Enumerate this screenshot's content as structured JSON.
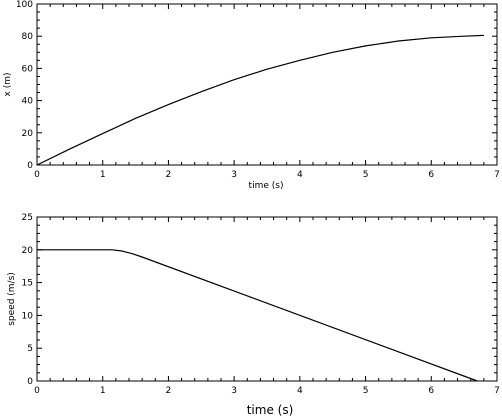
{
  "chart_data": [
    {
      "type": "line",
      "title": "",
      "xlabel": "time   (s)",
      "ylabel": "x   (m)",
      "xlim": [
        0,
        7
      ],
      "ylim": [
        0,
        100
      ],
      "x_ticks": [
        0,
        1,
        2,
        3,
        4,
        5,
        6,
        7
      ],
      "y_ticks": [
        0,
        20,
        40,
        60,
        80,
        100
      ],
      "grid": false,
      "series": [
        {
          "x": [
            0,
            0.5,
            1,
            1.5,
            2,
            2.5,
            3,
            3.5,
            4,
            4.5,
            5,
            5.5,
            6,
            6.5,
            6.8
          ],
          "values": [
            0,
            10,
            19.5,
            29,
            37.5,
            45.5,
            53,
            59.5,
            65,
            70,
            74,
            77,
            79,
            80,
            80.5
          ]
        }
      ]
    },
    {
      "type": "line",
      "title": "",
      "xlabel": "time   (s)",
      "ylabel": "speed   (m/s)",
      "xlim": [
        0,
        7
      ],
      "ylim": [
        0,
        25
      ],
      "x_ticks": [
        0,
        1,
        2,
        3,
        4,
        5,
        6,
        7
      ],
      "y_ticks": [
        0,
        5,
        10,
        15,
        20,
        25
      ],
      "grid": false,
      "series": [
        {
          "x": [
            0,
            1.15,
            1.3,
            1.45,
            1.6,
            6.7
          ],
          "values": [
            20,
            20,
            19.8,
            19.4,
            18.9,
            0
          ]
        }
      ]
    }
  ]
}
